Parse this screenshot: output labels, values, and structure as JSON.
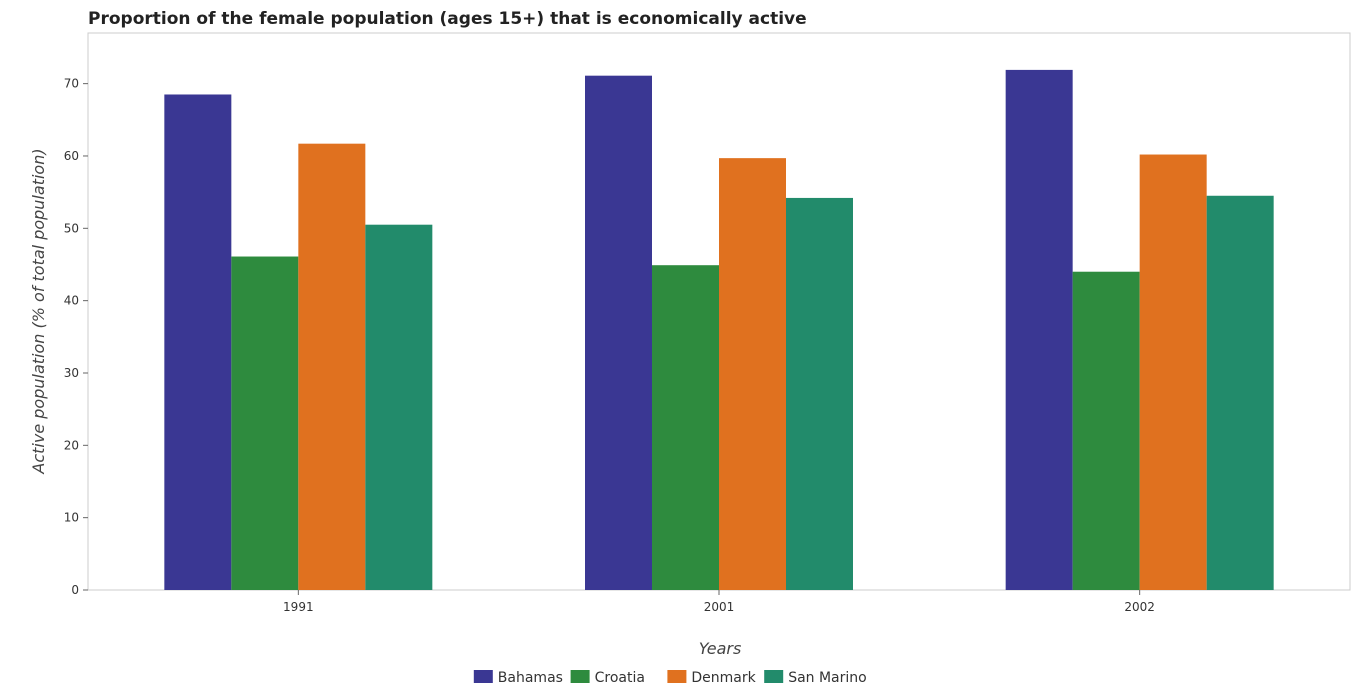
{
  "chart_data": {
    "type": "bar",
    "title": "Proportion of the female population (ages 15+) that is economically active",
    "xlabel": "Years",
    "ylabel": "Active population (% of total population)",
    "categories": [
      "1991",
      "2001",
      "2002"
    ],
    "ylim": [
      0,
      77
    ],
    "yticks": [
      0,
      10,
      20,
      30,
      40,
      50,
      60,
      70
    ],
    "grid": false,
    "legend_position": "bottom-center",
    "series": [
      {
        "name": "Bahamas",
        "color": "#3a3793",
        "values": [
          68.5,
          71.1,
          71.9
        ]
      },
      {
        "name": "Croatia",
        "color": "#2e8b3e",
        "values": [
          46.1,
          44.9,
          44.0
        ]
      },
      {
        "name": "Denmark",
        "color": "#e0711f",
        "values": [
          61.7,
          59.7,
          60.2
        ]
      },
      {
        "name": "San Marino",
        "color": "#228b6b",
        "values": [
          50.5,
          54.2,
          54.5
        ]
      }
    ]
  }
}
